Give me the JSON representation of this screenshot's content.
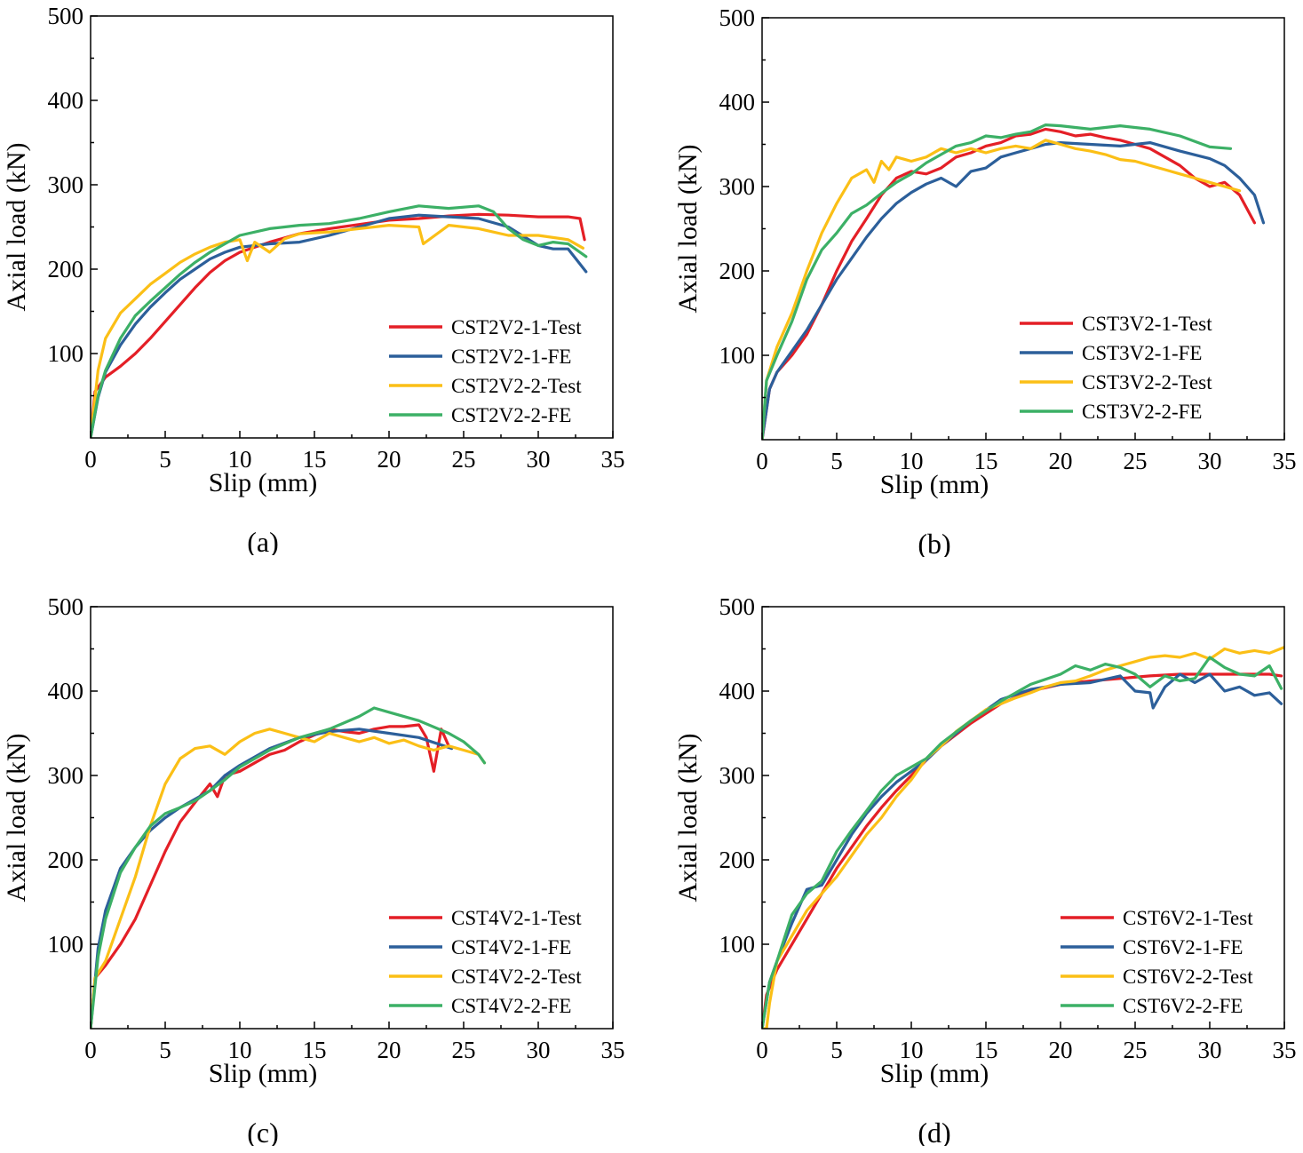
{
  "colors": {
    "red": "#e41f26",
    "blue": "#2c5f9a",
    "yellow": "#fbbf16",
    "green": "#3cb066"
  },
  "chart_data": [
    {
      "type": "line",
      "caption": "(a)",
      "xlabel": "Slip (mm)",
      "ylabel": "Axial load (kN)",
      "xlim": [
        0,
        35
      ],
      "ylim": [
        0,
        500
      ],
      "xticks": [
        0,
        5,
        10,
        15,
        20,
        25,
        30,
        35
      ],
      "yticks": [
        100,
        200,
        300,
        400,
        500
      ],
      "legend_position": "bottom-right",
      "series": [
        {
          "name": "CST2V2-1-Test",
          "color": "red",
          "x": [
            0,
            0.3,
            1,
            2,
            3,
            4,
            5,
            6,
            7,
            8,
            9,
            10,
            12,
            14,
            16,
            18,
            20,
            22,
            24,
            26,
            28,
            30,
            32,
            32.8,
            33.1
          ],
          "y": [
            0,
            55,
            72,
            85,
            100,
            118,
            138,
            158,
            178,
            196,
            210,
            220,
            232,
            242,
            248,
            253,
            258,
            260,
            263,
            265,
            264,
            262,
            262,
            260,
            235
          ]
        },
        {
          "name": "CST2V2-1-FE",
          "color": "blue",
          "x": [
            0,
            0.5,
            1,
            2,
            3,
            4,
            5,
            6,
            7,
            8,
            9,
            10,
            12,
            14,
            16,
            18,
            20,
            22,
            24,
            26,
            28,
            30,
            31,
            32,
            33.2
          ],
          "y": [
            0,
            48,
            78,
            110,
            135,
            155,
            172,
            188,
            200,
            212,
            220,
            226,
            230,
            232,
            240,
            250,
            260,
            264,
            262,
            260,
            250,
            228,
            224,
            224,
            197
          ]
        },
        {
          "name": "CST2V2-2-Test",
          "color": "yellow",
          "x": [
            0,
            0.5,
            1,
            2,
            3,
            4,
            5,
            6,
            7,
            8,
            9,
            10,
            10.5,
            11,
            12,
            13,
            14,
            16,
            18,
            20,
            22,
            22.3,
            24,
            26,
            28,
            30,
            32,
            33
          ],
          "y": [
            0,
            80,
            118,
            148,
            165,
            182,
            195,
            208,
            218,
            226,
            232,
            235,
            210,
            232,
            220,
            236,
            242,
            244,
            248,
            252,
            250,
            230,
            252,
            248,
            240,
            240,
            235,
            225
          ]
        },
        {
          "name": "CST2V2-2-FE",
          "color": "green",
          "x": [
            0,
            0.5,
            1,
            2,
            3,
            4,
            5,
            6,
            7,
            8,
            9,
            10,
            12,
            14,
            16,
            18,
            20,
            22,
            24,
            26,
            27,
            28,
            29,
            30,
            31,
            32,
            33.2
          ],
          "y": [
            0,
            50,
            80,
            118,
            145,
            162,
            178,
            194,
            208,
            220,
            230,
            240,
            248,
            252,
            254,
            260,
            268,
            275,
            272,
            275,
            268,
            248,
            235,
            228,
            232,
            230,
            215
          ]
        }
      ]
    },
    {
      "type": "line",
      "caption": "(b)",
      "xlabel": "Slip (mm)",
      "ylabel": "Axial load (kN)",
      "xlim": [
        0,
        35
      ],
      "ylim": [
        0,
        500
      ],
      "xticks": [
        0,
        5,
        10,
        15,
        20,
        25,
        30,
        35
      ],
      "yticks": [
        100,
        200,
        300,
        400,
        500
      ],
      "legend_position": "middle-right",
      "series": [
        {
          "name": "CST3V2-1-Test",
          "color": "red",
          "x": [
            0,
            0.5,
            1,
            2,
            3,
            4,
            5,
            6,
            7,
            8,
            9,
            10,
            11,
            12,
            13,
            14,
            15,
            16,
            17,
            18,
            19,
            20,
            21,
            22,
            23,
            24,
            25,
            26,
            27,
            28,
            29,
            30,
            31,
            32,
            33
          ],
          "y": [
            0,
            60,
            80,
            100,
            125,
            160,
            200,
            235,
            262,
            290,
            310,
            318,
            315,
            322,
            335,
            340,
            348,
            352,
            360,
            362,
            368,
            365,
            360,
            362,
            358,
            355,
            350,
            345,
            335,
            325,
            310,
            300,
            305,
            290,
            257
          ]
        },
        {
          "name": "CST3V2-1-FE",
          "color": "blue",
          "x": [
            0,
            0.5,
            1,
            2,
            3,
            4,
            5,
            6,
            7,
            8,
            9,
            10,
            11,
            12,
            13,
            14,
            15,
            16,
            17,
            18,
            19,
            20,
            22,
            24,
            26,
            28,
            30,
            31,
            32,
            33,
            33.6
          ],
          "y": [
            0,
            60,
            80,
            105,
            130,
            160,
            190,
            215,
            240,
            262,
            280,
            293,
            303,
            310,
            300,
            318,
            322,
            335,
            340,
            345,
            350,
            352,
            350,
            348,
            352,
            342,
            333,
            325,
            310,
            290,
            257
          ]
        },
        {
          "name": "CST3V2-2-Test",
          "color": "yellow",
          "x": [
            0,
            0.3,
            1,
            2,
            3,
            4,
            5,
            6,
            7,
            7.5,
            8,
            8.5,
            9,
            10,
            11,
            12,
            13,
            14,
            15,
            16,
            17,
            18,
            19,
            20,
            21,
            22,
            23,
            24,
            25,
            26,
            27,
            28,
            29,
            30,
            31,
            32
          ],
          "y": [
            0,
            70,
            110,
            150,
            200,
            245,
            280,
            310,
            320,
            305,
            330,
            320,
            335,
            330,
            335,
            345,
            340,
            345,
            340,
            345,
            348,
            345,
            355,
            350,
            345,
            342,
            338,
            332,
            330,
            325,
            320,
            315,
            310,
            305,
            300,
            295
          ]
        },
        {
          "name": "CST3V2-2-FE",
          "color": "green",
          "x": [
            0,
            0.3,
            1,
            2,
            3,
            4,
            5,
            6,
            7,
            8,
            9,
            10,
            11,
            12,
            13,
            14,
            15,
            16,
            17,
            18,
            19,
            20,
            22,
            24,
            26,
            28,
            30,
            31.4
          ],
          "y": [
            0,
            70,
            100,
            140,
            190,
            225,
            245,
            268,
            278,
            292,
            305,
            315,
            328,
            338,
            348,
            352,
            360,
            358,
            362,
            365,
            373,
            372,
            368,
            372,
            368,
            360,
            347,
            345
          ]
        }
      ]
    },
    {
      "type": "line",
      "caption": "(c)",
      "xlabel": "Slip (mm)",
      "ylabel": "Axial load (kN)",
      "xlim": [
        0,
        35
      ],
      "ylim": [
        0,
        500
      ],
      "xticks": [
        0,
        5,
        10,
        15,
        20,
        25,
        30,
        35
      ],
      "yticks": [
        100,
        200,
        300,
        400,
        500
      ],
      "legend_position": "bottom-right",
      "series": [
        {
          "name": "CST4V2-1-Test",
          "color": "red",
          "x": [
            0,
            0.3,
            1,
            2,
            3,
            4,
            5,
            6,
            7,
            8,
            8.5,
            9,
            10,
            11,
            12,
            13,
            14,
            15,
            16,
            17,
            18,
            19,
            20,
            21,
            22,
            22.5,
            23,
            23.5,
            24
          ],
          "y": [
            0,
            60,
            75,
            100,
            130,
            170,
            210,
            245,
            268,
            290,
            275,
            300,
            305,
            315,
            325,
            330,
            340,
            348,
            355,
            352,
            350,
            355,
            358,
            358,
            360,
            345,
            305,
            355,
            335
          ]
        },
        {
          "name": "CST4V2-1-FE",
          "color": "blue",
          "x": [
            0,
            0.5,
            1,
            2,
            3,
            4,
            5,
            6,
            7,
            8,
            9,
            10,
            12,
            14,
            16,
            18,
            20,
            22,
            24.2
          ],
          "y": [
            0,
            95,
            140,
            190,
            215,
            235,
            250,
            262,
            272,
            282,
            300,
            312,
            332,
            345,
            352,
            355,
            350,
            345,
            332
          ]
        },
        {
          "name": "CST4V2-2-Test",
          "color": "yellow",
          "x": [
            0,
            0.3,
            1,
            2,
            3,
            4,
            5,
            6,
            7,
            8,
            9,
            10,
            11,
            12,
            13,
            14,
            15,
            16,
            17,
            18,
            19,
            20,
            21,
            22,
            23,
            24,
            25,
            26,
            26.4
          ],
          "y": [
            0,
            60,
            80,
            130,
            180,
            240,
            290,
            320,
            332,
            335,
            325,
            340,
            350,
            355,
            350,
            345,
            340,
            350,
            345,
            340,
            345,
            338,
            342,
            335,
            330,
            335,
            330,
            325,
            315
          ]
        },
        {
          "name": "CST4V2-2-FE",
          "color": "green",
          "x": [
            0,
            0.5,
            1,
            2,
            3,
            4,
            5,
            6,
            7,
            8,
            9,
            10,
            12,
            14,
            16,
            18,
            19,
            20,
            22,
            24,
            25,
            26,
            26.4
          ],
          "y": [
            0,
            85,
            130,
            185,
            215,
            240,
            255,
            262,
            270,
            282,
            295,
            310,
            330,
            345,
            355,
            370,
            380,
            375,
            365,
            350,
            340,
            325,
            315
          ]
        }
      ]
    },
    {
      "type": "line",
      "caption": "(d)",
      "xlabel": "Slip (mm)",
      "ylabel": "Axial load (kN)",
      "xlim": [
        0,
        35
      ],
      "ylim": [
        0,
        500
      ],
      "xticks": [
        0,
        5,
        10,
        15,
        20,
        25,
        30,
        35
      ],
      "yticks": [
        100,
        200,
        300,
        400,
        500
      ],
      "legend_position": "bottom-right",
      "series": [
        {
          "name": "CST6V2-1-Test",
          "color": "red",
          "x": [
            0,
            0.3,
            1,
            2,
            3,
            4,
            5,
            6,
            7,
            8,
            9,
            10,
            11,
            12,
            14,
            16,
            18,
            20,
            22,
            24,
            26,
            28,
            30,
            32,
            34,
            34.8
          ],
          "y": [
            0,
            40,
            70,
            100,
            130,
            160,
            190,
            215,
            240,
            262,
            282,
            300,
            318,
            335,
            362,
            385,
            400,
            408,
            412,
            415,
            418,
            420,
            420,
            420,
            420,
            418
          ]
        },
        {
          "name": "CST6V2-1-FE",
          "color": "blue",
          "x": [
            0,
            0.5,
            1,
            2,
            3,
            4,
            5,
            6,
            7,
            8,
            9,
            10,
            11,
            12,
            14,
            16,
            18,
            20,
            22,
            24,
            25,
            26,
            26.2,
            27,
            28,
            29,
            30,
            31,
            32,
            33,
            34,
            34.8
          ],
          "y": [
            0,
            55,
            80,
            125,
            165,
            170,
            200,
            230,
            255,
            275,
            292,
            305,
            318,
            335,
            365,
            390,
            402,
            408,
            410,
            418,
            400,
            398,
            380,
            405,
            420,
            410,
            420,
            400,
            405,
            395,
            398,
            385
          ]
        },
        {
          "name": "CST6V2-2-Test",
          "color": "yellow",
          "x": [
            0,
            0.3,
            0.5,
            1,
            2,
            3,
            4,
            5,
            6,
            7,
            8,
            9,
            10,
            11,
            12,
            13,
            14,
            15,
            16,
            17,
            18,
            19,
            20,
            21,
            22,
            23,
            24,
            25,
            26,
            27,
            28,
            29,
            30,
            31,
            32,
            33,
            34,
            35
          ],
          "y": [
            0,
            0,
            30,
            80,
            110,
            140,
            160,
            180,
            205,
            230,
            250,
            275,
            295,
            320,
            335,
            352,
            365,
            378,
            385,
            392,
            398,
            405,
            410,
            412,
            418,
            425,
            430,
            435,
            440,
            442,
            440,
            445,
            438,
            450,
            445,
            448,
            445,
            452
          ]
        },
        {
          "name": "CST6V2-2-FE",
          "color": "green",
          "x": [
            0,
            0.5,
            1,
            2,
            3,
            4,
            5,
            6,
            7,
            8,
            9,
            10,
            11,
            12,
            14,
            16,
            18,
            20,
            21,
            22,
            23,
            24,
            25,
            26,
            27,
            28,
            29,
            30,
            31,
            32,
            33,
            34,
            34.8
          ],
          "y": [
            0,
            55,
            80,
            135,
            160,
            175,
            210,
            235,
            258,
            282,
            300,
            310,
            320,
            338,
            365,
            388,
            408,
            420,
            430,
            425,
            432,
            428,
            420,
            405,
            418,
            412,
            415,
            440,
            428,
            420,
            418,
            430,
            403
          ]
        }
      ]
    }
  ]
}
